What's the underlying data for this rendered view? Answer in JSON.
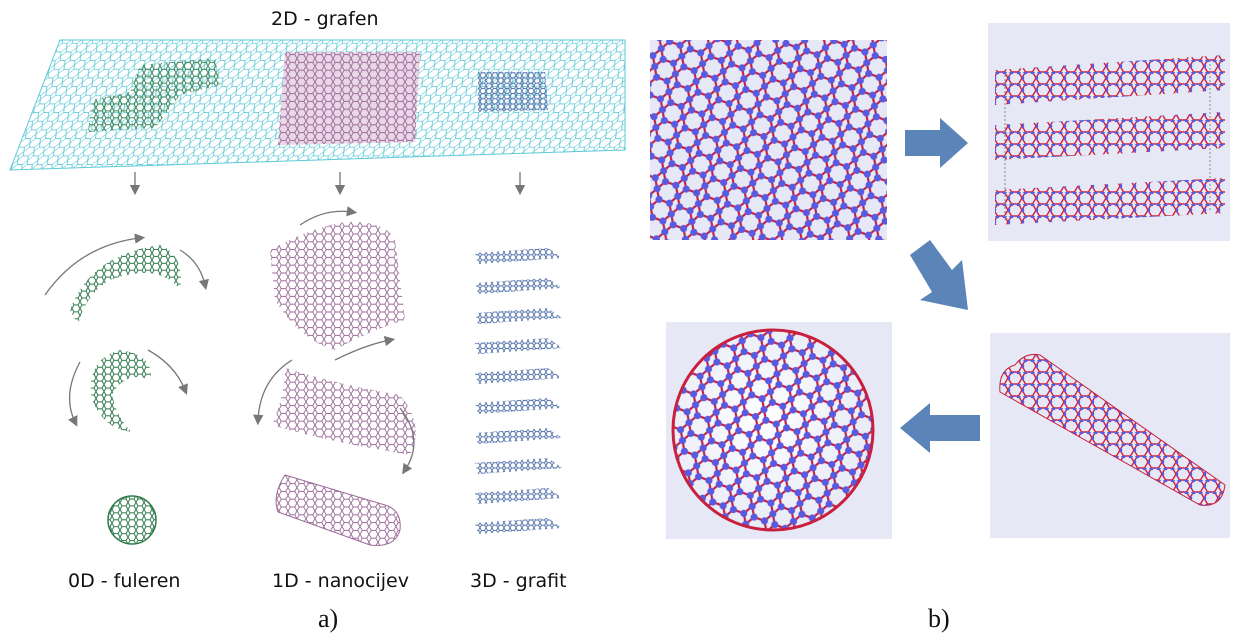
{
  "panel_a": {
    "top_label": "2D - grafen",
    "labels": {
      "fullerene": "0D - fuleren",
      "nanotube": "1D - nanocijev",
      "graphite": "3D - grafit"
    },
    "caption": "a)"
  },
  "panel_b": {
    "caption": "b)",
    "panels": [
      "graphene-sheet",
      "graphite-stack",
      "nanotube",
      "buckyball"
    ]
  },
  "colors": {
    "graphene_sheet": "#5fc9d8",
    "fullerene_green": "#2f7a4a",
    "nanotube_purple": "#9a6a98",
    "graphite_blue": "#4f6fa8",
    "atom_blue": "#5a5ae0",
    "bond_red": "#c8203e",
    "arrow_blue": "#5b84b8",
    "panel_bg": "#e6e9f5"
  }
}
